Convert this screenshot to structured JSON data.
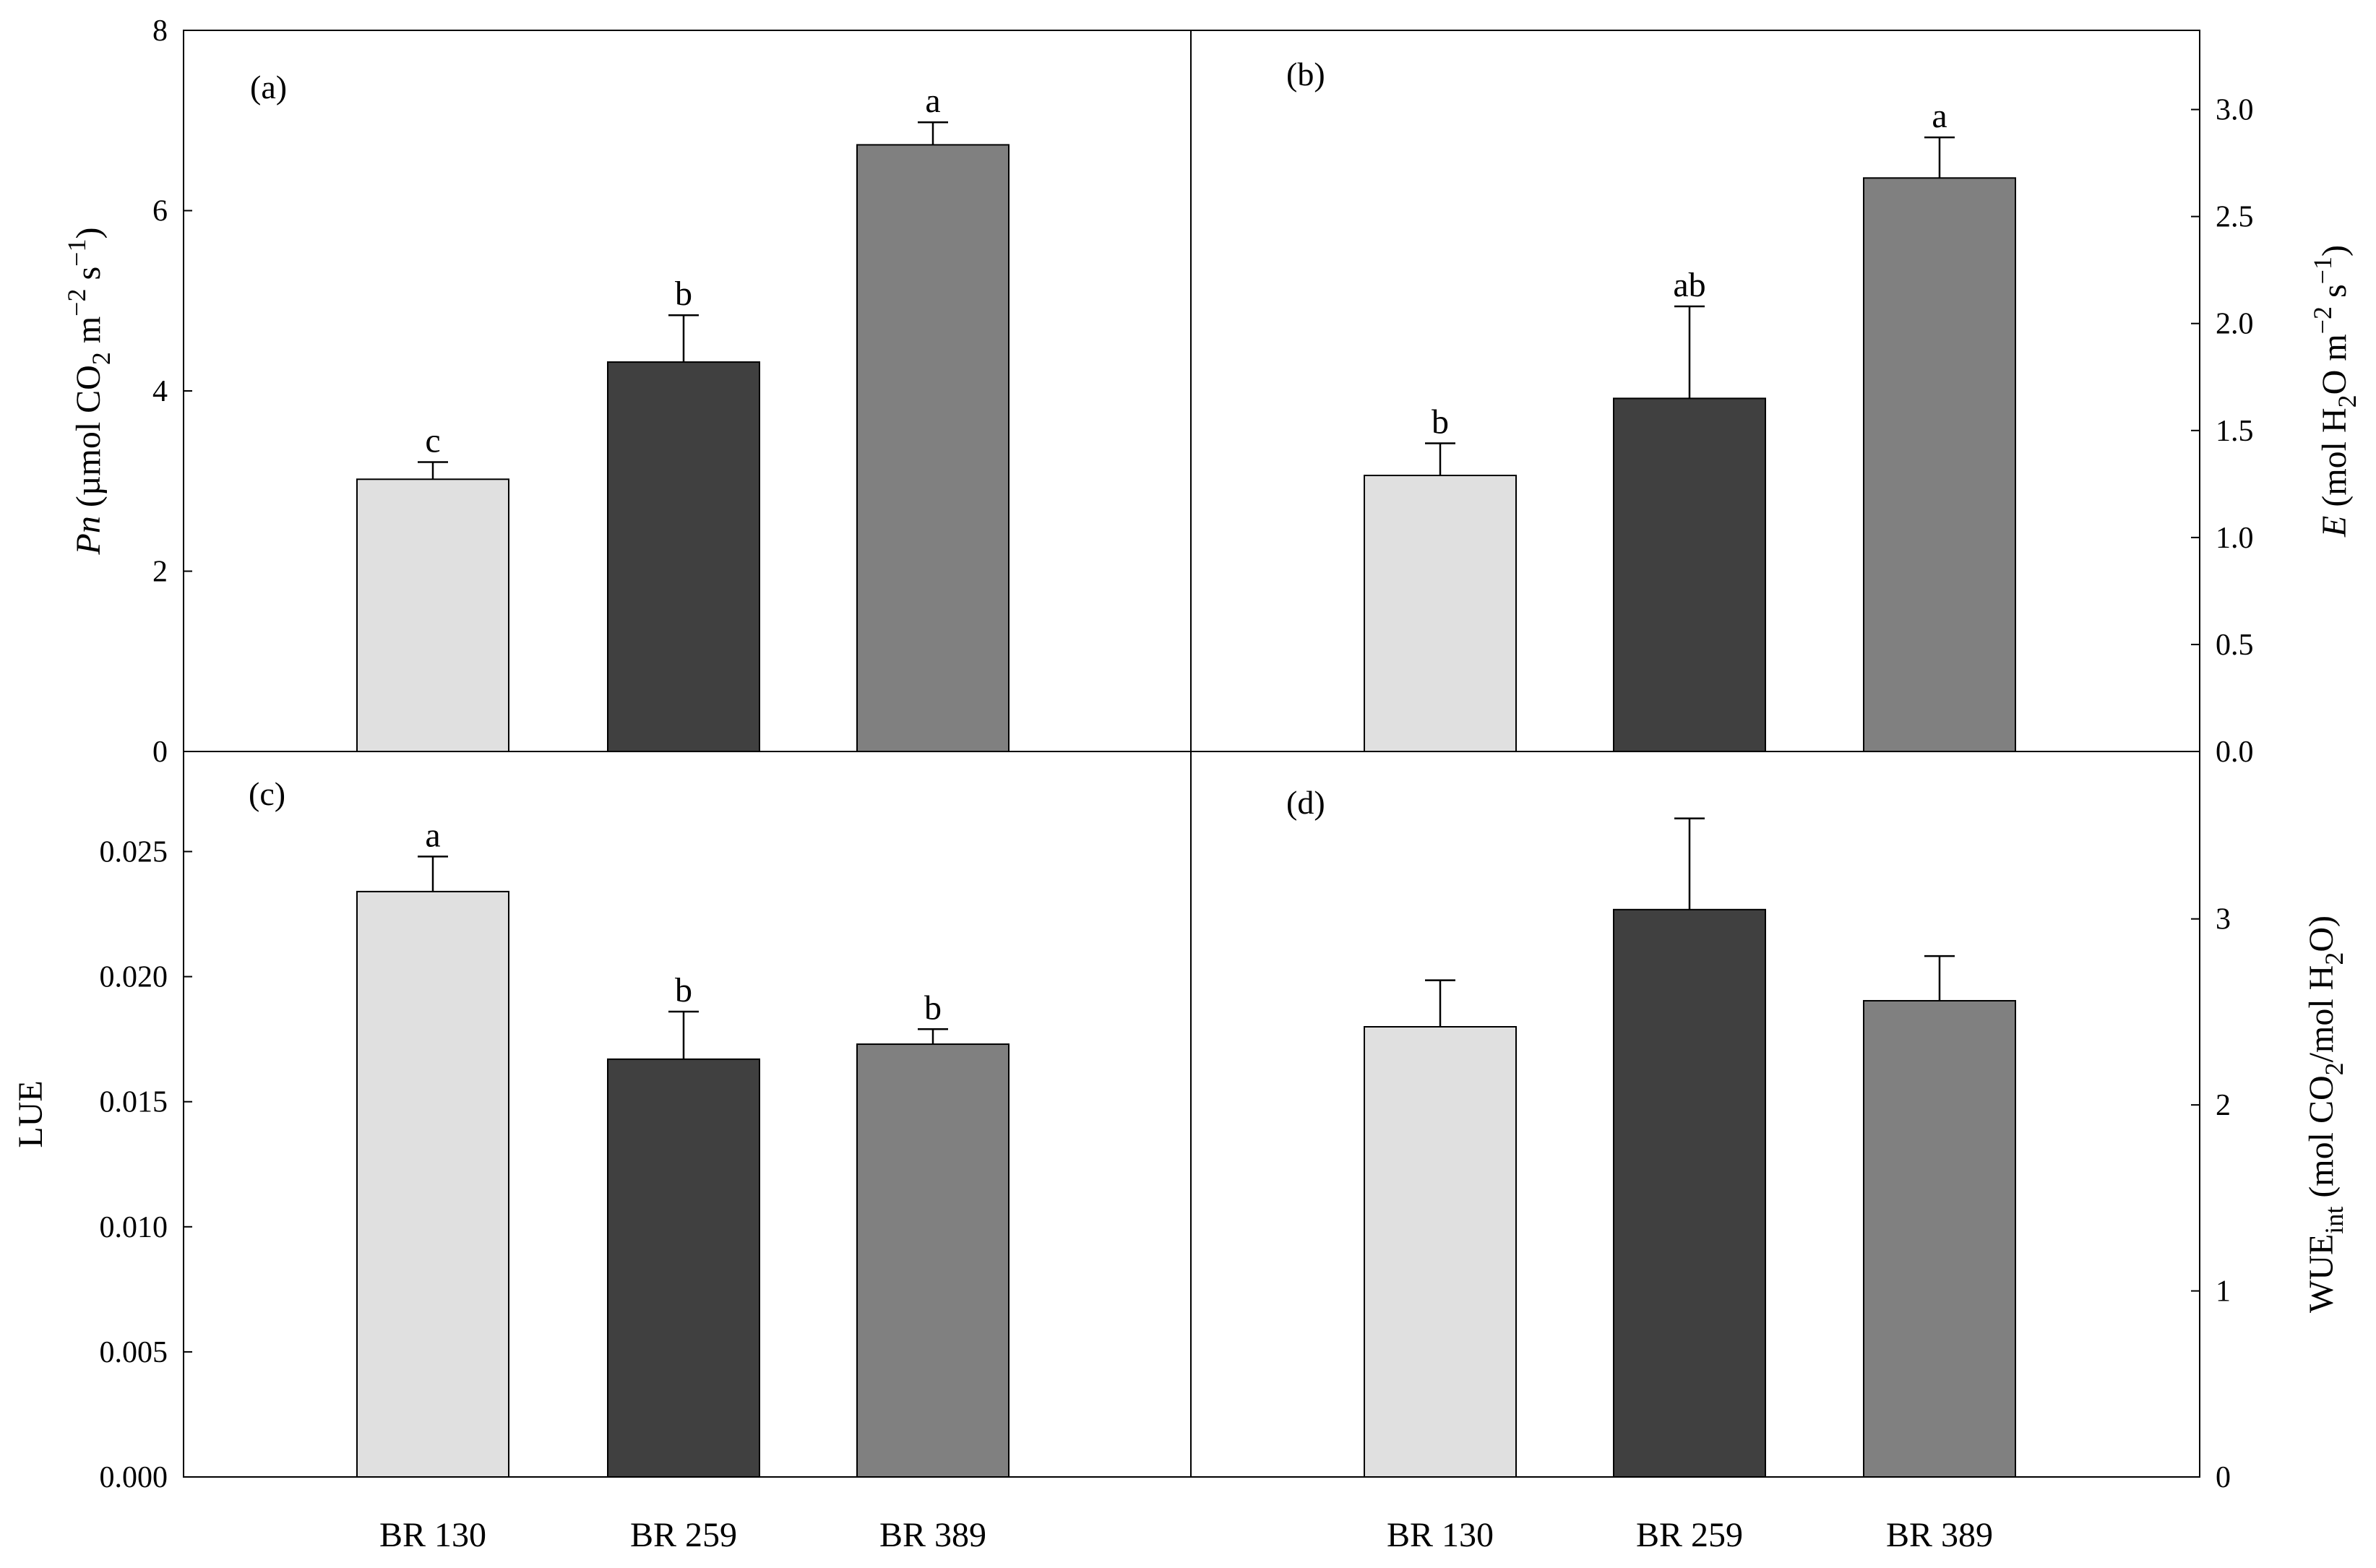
{
  "chart_data": [
    {
      "panel": "(a)",
      "type": "bar",
      "categories": [
        "BR 130",
        "BR 259",
        "BR 389"
      ],
      "values": [
        3.02,
        4.32,
        6.73
      ],
      "errors": [
        0.19,
        0.52,
        0.25
      ],
      "significance": [
        "c",
        "b",
        "a"
      ],
      "colors": [
        "#e0e0e0",
        "#404040",
        "#808080"
      ],
      "ylabel_main": "Pn",
      "ylabel_rest": " (µmol CO",
      "ylabel_sub": "2",
      "ylabel_tail": " m",
      "ylabel_sup1": "−2",
      "ylabel_mid": " s",
      "ylabel_sup2": "−1",
      "ylabel_close": ")",
      "ylim": [
        0,
        8
      ],
      "yticks": [
        0,
        2,
        4,
        6,
        8
      ],
      "ytick_labels": [
        "0",
        "2",
        "4",
        "6",
        "8"
      ],
      "axis_side": "left"
    },
    {
      "panel": "(b)",
      "type": "bar",
      "categories": [
        "BR 130",
        "BR 259",
        "BR 389"
      ],
      "values": [
        1.29,
        1.65,
        2.68
      ],
      "errors": [
        0.15,
        0.43,
        0.19
      ],
      "significance": [
        "b",
        "ab",
        "a"
      ],
      "colors": [
        "#e0e0e0",
        "#404040",
        "#808080"
      ],
      "ylabel_main": "E",
      "ylabel_rest": " (mol H",
      "ylabel_sub": "2",
      "ylabel_tail": "O m",
      "ylabel_sup1": "−2",
      "ylabel_mid": " s",
      "ylabel_sup2": "−1",
      "ylabel_close": ")",
      "ylim": [
        0,
        3.37
      ],
      "yticks": [
        0,
        0.5,
        1.0,
        1.5,
        2.0,
        2.5,
        3.0
      ],
      "ytick_labels": [
        "0.0",
        "0.5",
        "1.0",
        "1.5",
        "2.0",
        "2.5",
        "3.0"
      ],
      "axis_side": "right"
    },
    {
      "panel": "(c)",
      "type": "bar",
      "categories": [
        "BR 130",
        "BR 259",
        "BR 389"
      ],
      "values": [
        0.0234,
        0.0167,
        0.0173
      ],
      "errors": [
        0.0014,
        0.0019,
        0.0006
      ],
      "significance": [
        "a",
        "b",
        "b"
      ],
      "colors": [
        "#e0e0e0",
        "#404040",
        "#808080"
      ],
      "ylabel": "LUE",
      "ylim": [
        0,
        0.029
      ],
      "yticks": [
        0,
        0.005,
        0.01,
        0.015,
        0.02,
        0.025
      ],
      "ytick_labels": [
        "0.000",
        "0.005",
        "0.010",
        "0.015",
        "0.020",
        "0.025"
      ],
      "axis_side": "left"
    },
    {
      "panel": "(d)",
      "type": "bar",
      "categories": [
        "BR 130",
        "BR 259",
        "BR 389"
      ],
      "values": [
        2.42,
        3.05,
        2.56
      ],
      "errors": [
        0.25,
        0.49,
        0.24
      ],
      "significance": [
        "",
        "",
        ""
      ],
      "colors": [
        "#e0e0e0",
        "#404040",
        "#808080"
      ],
      "ylabel_main": "WUE",
      "ylabel_sub": "int",
      "ylabel_rest": " (mol CO",
      "ylabel_sub2": "2",
      "ylabel_tail": "/mol H",
      "ylabel_sub3": "2",
      "ylabel_close": "O)",
      "ylim": [
        0,
        3.9
      ],
      "yticks": [
        0,
        1,
        2,
        3
      ],
      "ytick_labels": [
        "0",
        "1",
        "2",
        "3"
      ],
      "axis_side": "right"
    }
  ]
}
